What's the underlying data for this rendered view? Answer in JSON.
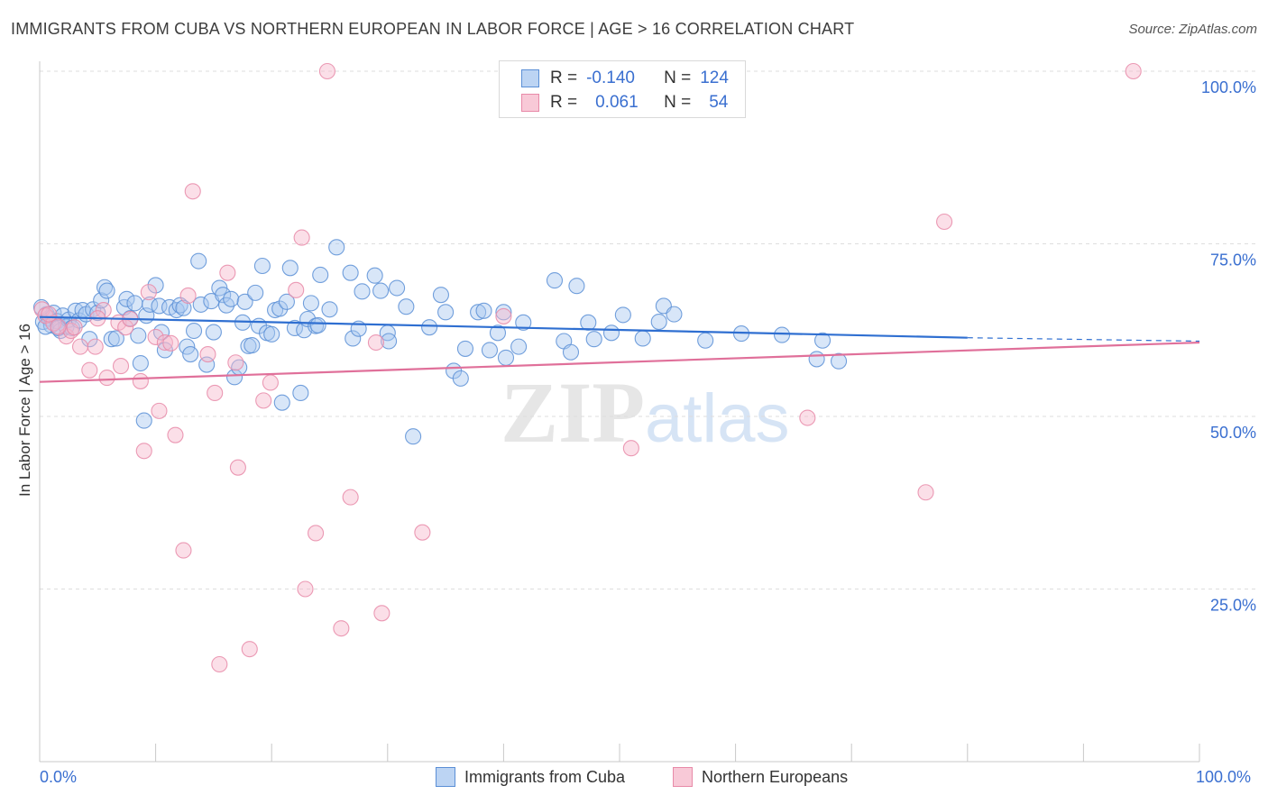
{
  "title": "IMMIGRANTS FROM CUBA VS NORTHERN EUROPEAN IN LABOR FORCE | AGE > 16 CORRELATION CHART",
  "source": "Source: ZipAtlas.com",
  "watermark": {
    "zip": "ZIP",
    "atlas": "atlas"
  },
  "legend_top": {
    "r_label": "R =",
    "n_label": "N =",
    "series": [
      {
        "name": "Immigrants from Cuba",
        "r": "-0.140",
        "n": "124"
      },
      {
        "name": "Northern Europeans",
        "r": "0.061",
        "n": "54"
      }
    ]
  },
  "legend_bottom": [
    "Immigrants from Cuba",
    "Northern Europeans"
  ],
  "x_ticks": {
    "min": "0.0%",
    "max": "100.0%"
  },
  "colors": {
    "blue_fill": "#a9c8f0",
    "blue_stroke": "#5b8fd6",
    "blue_line": "#2f6fd1",
    "pink_fill": "#f6b8cb",
    "pink_stroke": "#e88aa8",
    "pink_line": "#e0709a",
    "tick_text": "#3a6fd0",
    "grid": "#dddddd"
  },
  "chart_data": {
    "type": "scatter",
    "title": "IMMIGRANTS FROM CUBA VS NORTHERN EUROPEAN IN LABOR FORCE | AGE > 16 CORRELATION CHART",
    "xlabel": "",
    "ylabel": "In Labor Force | Age > 16",
    "xlim": [
      0,
      100
    ],
    "ylim": [
      0,
      100
    ],
    "y_ticks": [
      {
        "value": 25,
        "label": "25.0%"
      },
      {
        "value": 50,
        "label": "50.0%"
      },
      {
        "value": 75,
        "label": "75.0%"
      },
      {
        "value": 100,
        "label": "100.0%"
      }
    ],
    "series": [
      {
        "name": "Immigrants from Cuba",
        "color": "blue",
        "trend": {
          "x0": 0,
          "y0": 64.4,
          "x1": 80,
          "y1": 61.4,
          "dash_to_x": 100,
          "dash_to_y": 60.9
        },
        "points": [
          [
            0.3,
            63.7
          ],
          [
            0.6,
            64.8
          ],
          [
            0.8,
            64.2
          ],
          [
            1.0,
            63.2
          ],
          [
            1.2,
            65.0
          ],
          [
            1.5,
            63.8
          ],
          [
            1.8,
            62.4
          ],
          [
            2.0,
            64.6
          ],
          [
            2.3,
            63.0
          ],
          [
            2.5,
            64.0
          ],
          [
            2.8,
            62.8
          ],
          [
            3.1,
            65.3
          ],
          [
            3.4,
            63.9
          ],
          [
            3.7,
            65.4
          ],
          [
            4.0,
            64.8
          ],
          [
            4.3,
            61.2
          ],
          [
            4.6,
            65.5
          ],
          [
            5.0,
            65.0
          ],
          [
            5.3,
            66.8
          ],
          [
            5.6,
            68.7
          ],
          [
            5.8,
            68.2
          ],
          [
            6.2,
            61.2
          ],
          [
            6.6,
            61.3
          ],
          [
            7.3,
            65.8
          ],
          [
            7.5,
            67.0
          ],
          [
            7.8,
            64.2
          ],
          [
            8.2,
            66.4
          ],
          [
            8.5,
            61.7
          ],
          [
            8.7,
            57.7
          ],
          [
            9.0,
            49.4
          ],
          [
            9.2,
            64.6
          ],
          [
            9.5,
            66.2
          ],
          [
            10.0,
            69.0
          ],
          [
            10.3,
            66.0
          ],
          [
            10.5,
            62.2
          ],
          [
            10.8,
            59.6
          ],
          [
            11.2,
            65.8
          ],
          [
            11.8,
            65.4
          ],
          [
            12.1,
            66.1
          ],
          [
            12.4,
            65.7
          ],
          [
            12.7,
            60.1
          ],
          [
            13.0,
            59.0
          ],
          [
            13.3,
            62.4
          ],
          [
            13.7,
            72.5
          ],
          [
            13.9,
            66.2
          ],
          [
            14.4,
            57.5
          ],
          [
            14.8,
            66.7
          ],
          [
            15.0,
            62.2
          ],
          [
            15.5,
            68.6
          ],
          [
            15.8,
            67.6
          ],
          [
            16.1,
            66.1
          ],
          [
            16.5,
            67.0
          ],
          [
            16.8,
            55.7
          ],
          [
            17.2,
            57.1
          ],
          [
            17.5,
            63.6
          ],
          [
            17.7,
            66.6
          ],
          [
            18.0,
            60.2
          ],
          [
            18.3,
            60.3
          ],
          [
            18.6,
            67.9
          ],
          [
            18.9,
            63.1
          ],
          [
            19.2,
            71.8
          ],
          [
            19.6,
            62.1
          ],
          [
            20.0,
            61.9
          ],
          [
            20.3,
            65.4
          ],
          [
            20.7,
            65.6
          ],
          [
            20.9,
            52.0
          ],
          [
            21.3,
            66.6
          ],
          [
            21.6,
            71.5
          ],
          [
            22.0,
            62.8
          ],
          [
            22.5,
            53.4
          ],
          [
            22.8,
            62.5
          ],
          [
            23.1,
            64.1
          ],
          [
            23.4,
            66.4
          ],
          [
            23.8,
            63.1
          ],
          [
            24.0,
            63.2
          ],
          [
            24.2,
            70.5
          ],
          [
            25.0,
            65.5
          ],
          [
            25.6,
            74.5
          ],
          [
            26.8,
            70.8
          ],
          [
            27.0,
            61.3
          ],
          [
            27.5,
            62.7
          ],
          [
            27.8,
            68.1
          ],
          [
            28.9,
            70.4
          ],
          [
            29.4,
            68.2
          ],
          [
            30.0,
            62.1
          ],
          [
            30.1,
            60.9
          ],
          [
            30.8,
            68.6
          ],
          [
            31.6,
            65.9
          ],
          [
            32.2,
            47.1
          ],
          [
            33.6,
            62.9
          ],
          [
            34.6,
            67.6
          ],
          [
            35.0,
            65.1
          ],
          [
            35.7,
            56.6
          ],
          [
            36.3,
            55.5
          ],
          [
            36.7,
            59.8
          ],
          [
            37.8,
            65.1
          ],
          [
            38.3,
            65.3
          ],
          [
            38.8,
            59.6
          ],
          [
            39.5,
            62.1
          ],
          [
            40.0,
            65.1
          ],
          [
            40.2,
            58.5
          ],
          [
            41.3,
            60.1
          ],
          [
            41.7,
            63.6
          ],
          [
            44.4,
            69.7
          ],
          [
            45.2,
            60.9
          ],
          [
            45.8,
            59.3
          ],
          [
            46.3,
            68.9
          ],
          [
            47.3,
            63.6
          ],
          [
            47.8,
            61.2
          ],
          [
            49.3,
            62.1
          ],
          [
            50.3,
            64.7
          ],
          [
            52.0,
            61.3
          ],
          [
            53.4,
            63.7
          ],
          [
            53.8,
            66.0
          ],
          [
            54.7,
            64.8
          ],
          [
            57.4,
            61.0
          ],
          [
            60.5,
            62.0
          ],
          [
            64.0,
            61.8
          ],
          [
            67.0,
            58.3
          ],
          [
            67.5,
            61.0
          ],
          [
            68.9,
            58.0
          ],
          [
            0.15,
            65.8
          ],
          [
            0.5,
            63.0
          ],
          [
            1.6,
            62.8
          ]
        ]
      },
      {
        "name": "Northern Europeans",
        "color": "pink",
        "trend": {
          "x0": 0,
          "y0": 55.0,
          "x1": 100,
          "y1": 60.7
        },
        "points": [
          [
            0.2,
            65.5
          ],
          [
            0.5,
            64.6
          ],
          [
            1.2,
            63.5
          ],
          [
            2.3,
            61.6
          ],
          [
            2.7,
            62.4
          ],
          [
            3.5,
            60.1
          ],
          [
            4.3,
            56.7
          ],
          [
            4.8,
            60.1
          ],
          [
            5.5,
            65.4
          ],
          [
            5.8,
            55.6
          ],
          [
            6.8,
            63.6
          ],
          [
            7.0,
            57.3
          ],
          [
            7.4,
            62.9
          ],
          [
            7.8,
            64.1
          ],
          [
            8.7,
            55.1
          ],
          [
            9.0,
            45.0
          ],
          [
            9.4,
            68.0
          ],
          [
            10.0,
            61.5
          ],
          [
            10.3,
            50.8
          ],
          [
            10.8,
            60.7
          ],
          [
            11.3,
            60.6
          ],
          [
            11.7,
            47.3
          ],
          [
            12.4,
            30.6
          ],
          [
            12.8,
            67.5
          ],
          [
            13.2,
            82.6
          ],
          [
            14.5,
            59.0
          ],
          [
            15.1,
            53.4
          ],
          [
            15.5,
            14.1
          ],
          [
            16.2,
            70.8
          ],
          [
            16.9,
            57.8
          ],
          [
            17.1,
            42.6
          ],
          [
            18.1,
            16.3
          ],
          [
            19.3,
            52.3
          ],
          [
            19.9,
            54.9
          ],
          [
            22.1,
            68.3
          ],
          [
            22.6,
            75.9
          ],
          [
            22.9,
            25.0
          ],
          [
            23.8,
            33.1
          ],
          [
            24.8,
            100.0
          ],
          [
            26.0,
            19.3
          ],
          [
            26.8,
            38.3
          ],
          [
            29.0,
            60.7
          ],
          [
            29.5,
            21.5
          ],
          [
            33.0,
            33.2
          ],
          [
            40.0,
            64.5
          ],
          [
            51.0,
            45.4
          ],
          [
            66.2,
            49.8
          ],
          [
            76.4,
            39.0
          ],
          [
            78.0,
            78.2
          ],
          [
            94.3,
            100.0
          ],
          [
            0.8,
            64.8
          ],
          [
            3.0,
            62.9
          ],
          [
            1.6,
            63.0
          ],
          [
            5.0,
            64.2
          ]
        ]
      }
    ]
  }
}
